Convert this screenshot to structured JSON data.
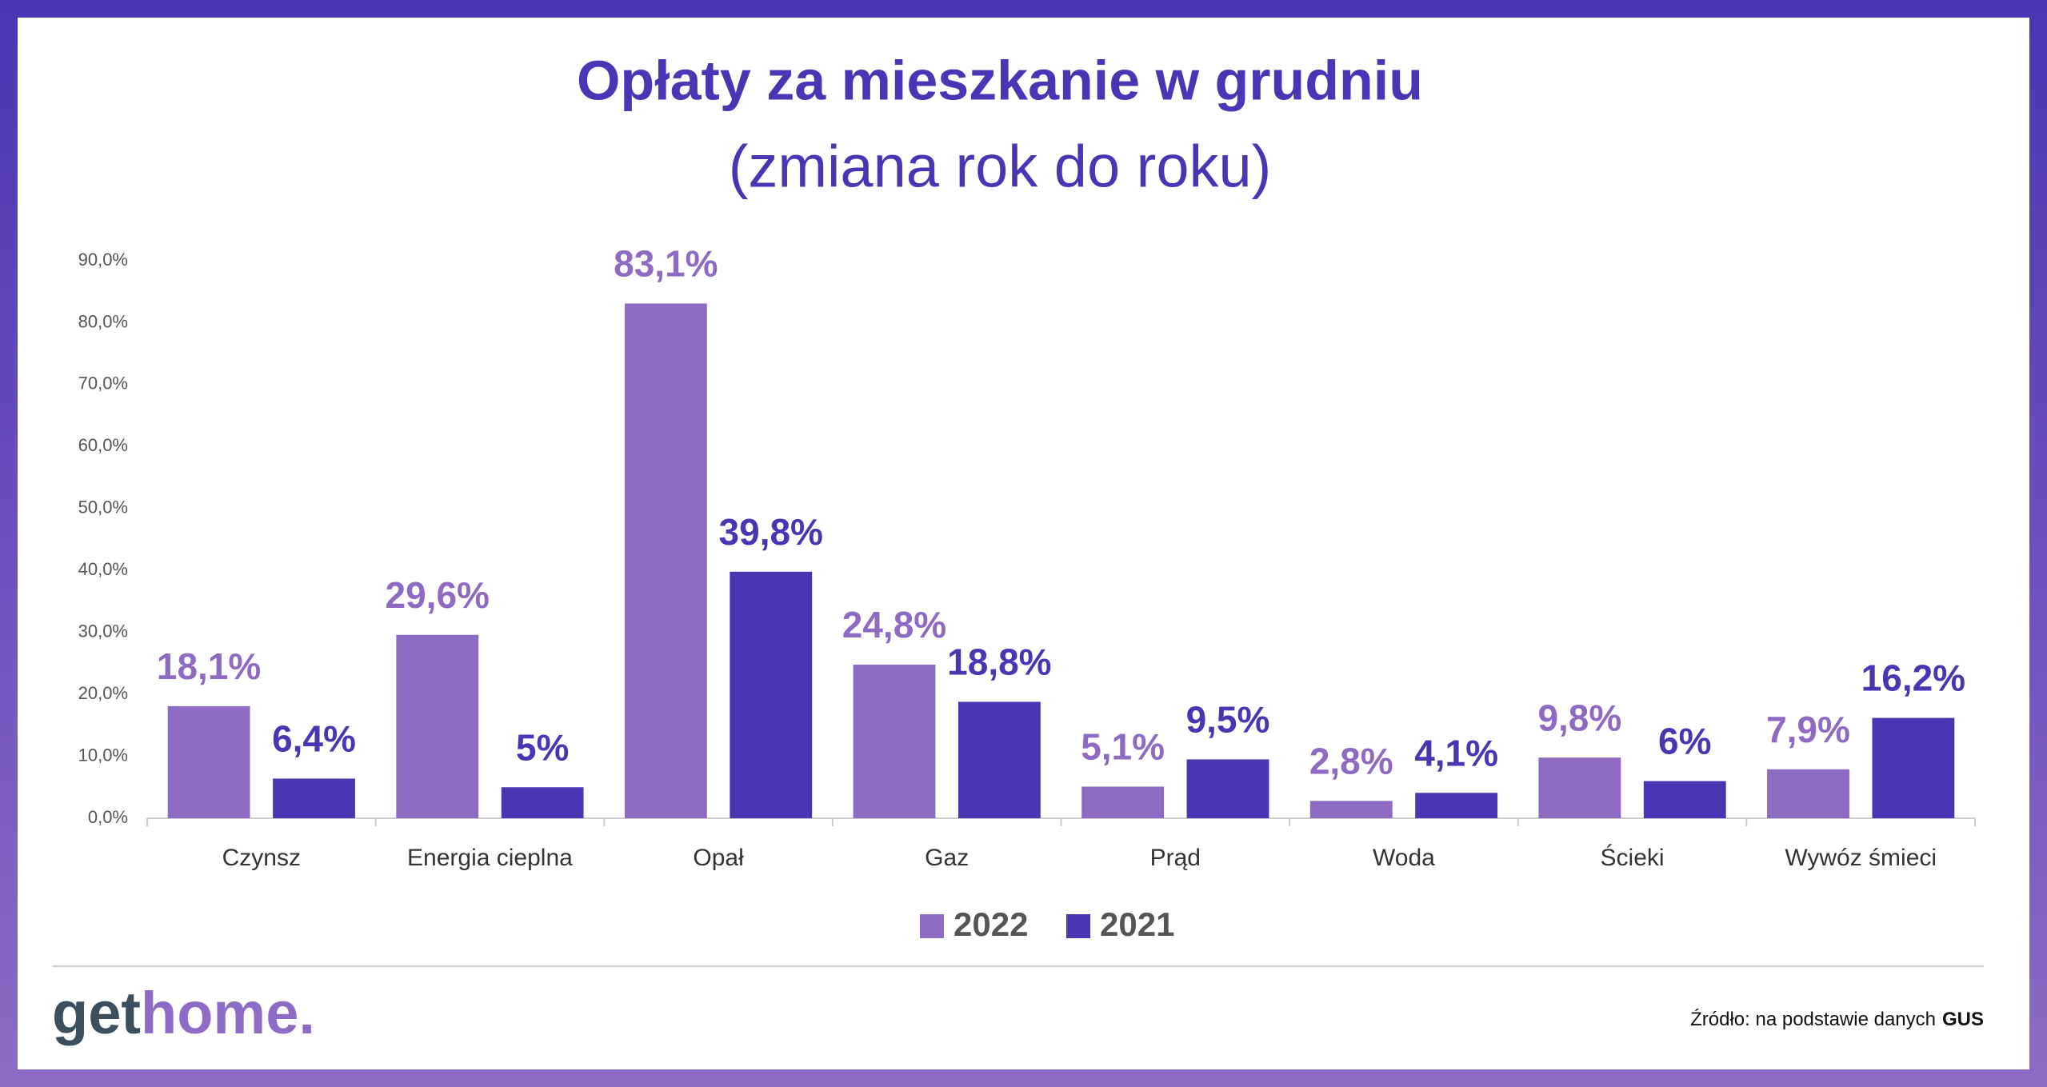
{
  "chart_data": {
    "type": "bar",
    "title": "Opłaty za mieszkanie w grudniu",
    "subtitle": "(zmiana rok do roku)",
    "categories": [
      "Czynsz",
      "Energia cieplna",
      "Opał",
      "Gaz",
      "Prąd",
      "Woda",
      "Ścieki",
      "Wywóz śmieci"
    ],
    "series": [
      {
        "name": "2022",
        "color": "#8e6bc2",
        "values": [
          18.1,
          29.6,
          83.1,
          24.8,
          5.1,
          2.8,
          9.8,
          7.9
        ],
        "value_labels": [
          "18,1%",
          "29,6%",
          "83,1%",
          "24,8%",
          "5,1%",
          "2,8%",
          "9,8%",
          "7,9%"
        ]
      },
      {
        "name": "2021",
        "color": "#4a35b2",
        "values": [
          6.4,
          5,
          39.8,
          18.8,
          9.5,
          4.1,
          6,
          16.2
        ],
        "value_labels": [
          "6,4%",
          "5%",
          "39,8%",
          "18,8%",
          "9,5%",
          "4,1%",
          "6%",
          "16,2%"
        ]
      }
    ],
    "ylim": [
      0,
      90
    ],
    "yticks": [
      {
        "value": 0,
        "label": "0,0%"
      },
      {
        "value": 10,
        "label": "10,0%"
      },
      {
        "value": 20,
        "label": "20,0%"
      },
      {
        "value": 30,
        "label": "30,0%"
      },
      {
        "value": 40,
        "label": "40,0%"
      },
      {
        "value": 50,
        "label": "50,0%"
      },
      {
        "value": 60,
        "label": "60,0%"
      },
      {
        "value": 70,
        "label": "70,0%"
      },
      {
        "value": 80,
        "label": "80,0%"
      },
      {
        "value": 90,
        "label": "90,0%"
      }
    ],
    "grid": false,
    "legend": "bottom"
  },
  "footer": {
    "logo_get": "get",
    "logo_home": "home.",
    "source": "Źródło: na podstawie danych",
    "source_bold": "GUS"
  }
}
